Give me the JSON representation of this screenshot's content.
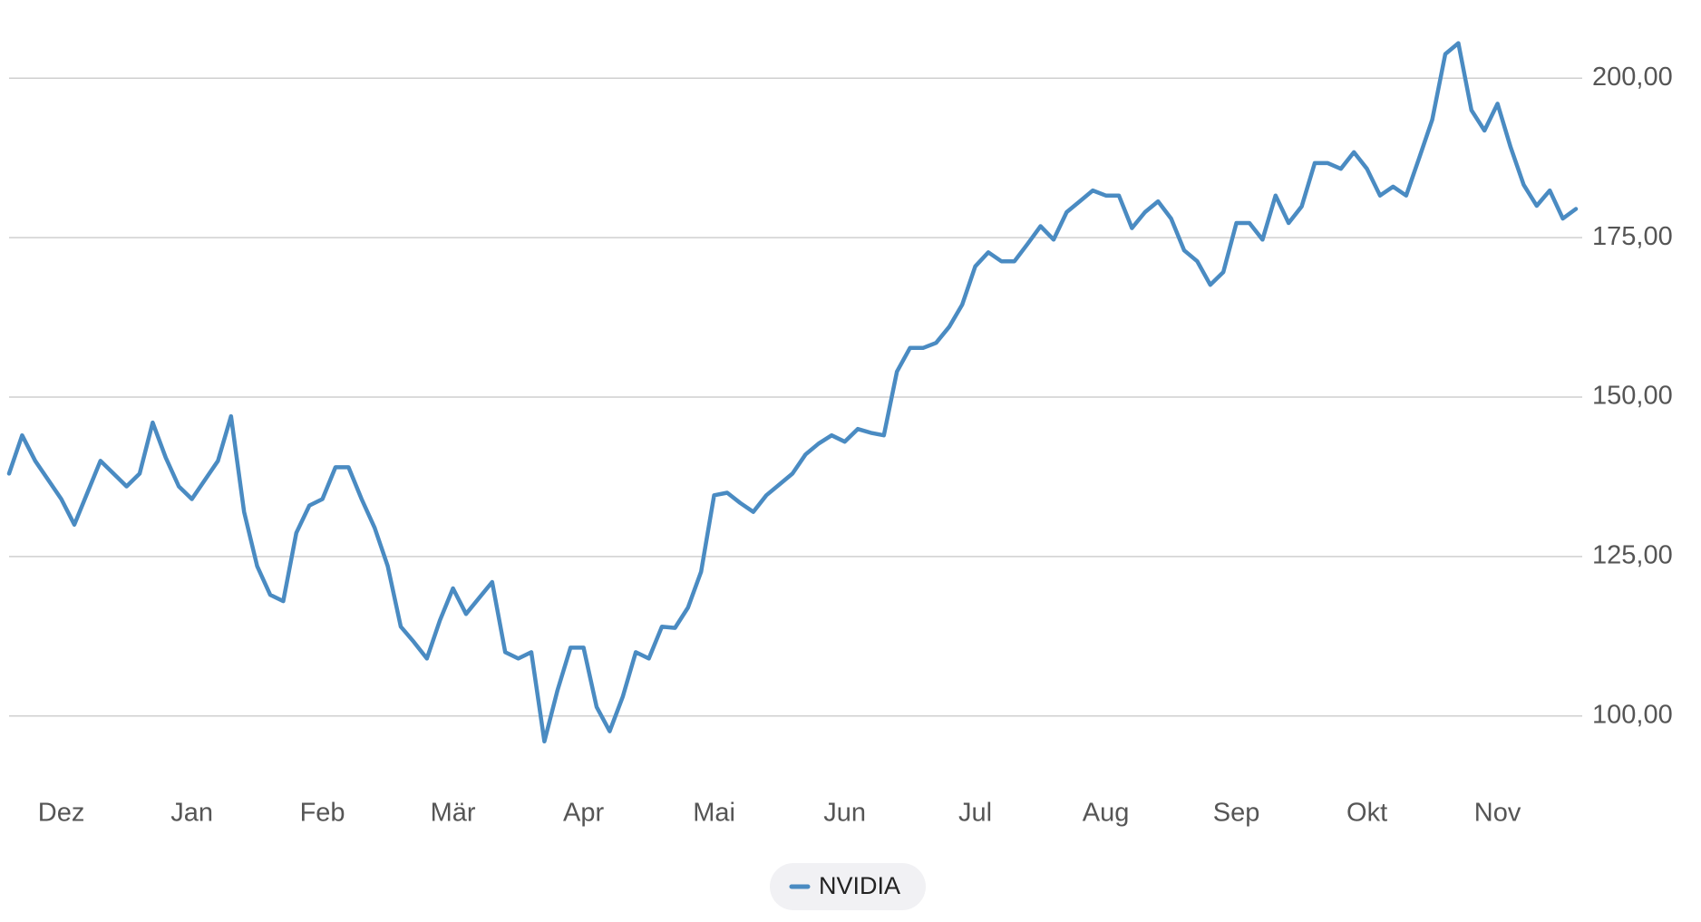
{
  "chart_data": {
    "type": "line",
    "categories": [
      null,
      null,
      null,
      null,
      "Dez",
      null,
      null,
      null,
      null,
      null,
      null,
      null,
      null,
      null,
      "Jan",
      null,
      null,
      null,
      null,
      null,
      null,
      null,
      null,
      null,
      "Feb",
      null,
      null,
      null,
      null,
      null,
      null,
      null,
      null,
      null,
      "Mär",
      null,
      null,
      null,
      null,
      null,
      null,
      null,
      null,
      null,
      "Apr",
      null,
      null,
      null,
      null,
      null,
      null,
      null,
      null,
      null,
      "Mai",
      null,
      null,
      null,
      null,
      null,
      null,
      null,
      null,
      null,
      "Jun",
      null,
      null,
      null,
      null,
      null,
      null,
      null,
      null,
      null,
      "Jul",
      null,
      null,
      null,
      null,
      null,
      null,
      null,
      null,
      null,
      "Aug",
      null,
      null,
      null,
      null,
      null,
      null,
      null,
      null,
      null,
      "Sep",
      null,
      null,
      null,
      null,
      null,
      null,
      null,
      null,
      null,
      "Okt",
      null,
      null,
      null,
      null,
      null,
      null,
      null,
      null,
      null,
      "Nov",
      null,
      null,
      null,
      null,
      null,
      null
    ],
    "series": [
      {
        "name": "NVIDIA",
        "color": "#4a8bc2",
        "values": [
          138,
          144,
          140,
          137,
          134,
          130,
          135,
          140,
          138,
          136,
          138,
          146,
          140.5,
          136,
          134,
          137,
          140,
          147,
          132,
          123.5,
          119,
          118,
          128.7,
          133,
          134,
          139,
          139,
          134,
          129.5,
          123.5,
          114,
          111.6,
          109,
          115,
          120,
          116,
          118.5,
          121,
          110,
          109,
          110,
          96,
          104,
          110.7,
          110.7,
          101.4,
          97.6,
          103,
          110,
          109,
          114,
          113.8,
          117,
          122.6,
          134.6,
          135,
          133.4,
          132,
          134.6,
          136.3,
          138,
          141,
          142.7,
          144,
          143,
          145,
          144.4,
          144,
          154,
          157.7,
          157.7,
          158.5,
          161,
          164.5,
          170.5,
          172.7,
          171.3,
          171.3,
          174,
          176.8,
          174.7,
          179,
          180.7,
          182.4,
          181.6,
          181.6,
          176.5,
          179,
          180.7,
          178,
          173,
          171.3,
          167.6,
          169.6,
          177.3,
          177.3,
          174.7,
          181.6,
          177.3,
          179.9,
          186.7,
          186.7,
          185.8,
          188.4,
          185.8,
          181.6,
          183,
          181.6,
          187.5,
          193.5,
          203.8,
          205.5,
          195,
          191.8,
          196,
          189.2,
          183.3,
          180,
          182.4,
          178,
          179.5
        ]
      }
    ],
    "ylim": [
      91,
      209
    ],
    "yticks": [
      {
        "value": 100,
        "label": "100,00"
      },
      {
        "value": 125,
        "label": "125,00"
      },
      {
        "value": 150,
        "label": "150,00"
      },
      {
        "value": 175,
        "label": "175,00"
      },
      {
        "value": 200,
        "label": "200,00"
      }
    ],
    "grid": true
  }
}
